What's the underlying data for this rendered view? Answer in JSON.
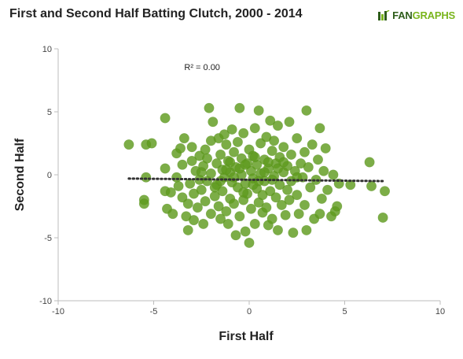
{
  "header": {
    "title": "First and Second Half Batting Clutch, 2000 - 2014",
    "brand_left": "FAN",
    "brand_right": "GRAPHS"
  },
  "colors": {
    "point": "#5f9b1e",
    "point_stroke": "#4f8a16",
    "trend": "#333333",
    "axis": "#bdbdbd",
    "grid": "#e8e8e8",
    "brand_dark": "#2e5c1a",
    "brand_light": "#7ab51d"
  },
  "chart_data": {
    "type": "scatter",
    "title": "First and Second Half Batting Clutch, 2000 - 2014",
    "xlabel": "First Half",
    "ylabel": "Second Half",
    "xlim": [
      -10,
      10
    ],
    "ylim": [
      -10,
      10
    ],
    "x_ticks": [
      -10,
      -5,
      0,
      5,
      10
    ],
    "y_ticks": [
      -10,
      -5,
      0,
      5,
      10
    ],
    "annotation": "R² = 0.00",
    "grid": false,
    "legend": "none",
    "trendline": {
      "style": "dotted",
      "x": [
        -6.3,
        7.0
      ],
      "y": [
        -0.3,
        -0.5
      ]
    },
    "points": [
      [
        -6.3,
        2.4
      ],
      [
        -5.4,
        2.4
      ],
      [
        -5.1,
        2.5
      ],
      [
        -5.4,
        -0.2
      ],
      [
        -5.5,
        -2.0
      ],
      [
        -5.5,
        -2.3
      ],
      [
        -4.4,
        4.5
      ],
      [
        -4.4,
        0.5
      ],
      [
        -4.4,
        -1.3
      ],
      [
        -4.3,
        -2.7
      ],
      [
        -4.0,
        -3.1
      ],
      [
        -4.1,
        -1.4
      ],
      [
        -3.8,
        1.7
      ],
      [
        -3.8,
        -0.2
      ],
      [
        -3.7,
        -0.9
      ],
      [
        -3.6,
        2.1
      ],
      [
        -3.5,
        0.8
      ],
      [
        -3.5,
        -1.8
      ],
      [
        -3.4,
        2.9
      ],
      [
        -3.3,
        -3.3
      ],
      [
        -3.2,
        -4.4
      ],
      [
        -3.2,
        -2.3
      ],
      [
        -3.1,
        -0.7
      ],
      [
        -3.0,
        2.2
      ],
      [
        -3.0,
        1.1
      ],
      [
        -2.9,
        -1.5
      ],
      [
        -2.9,
        -3.6
      ],
      [
        -2.8,
        0.3
      ],
      [
        -2.7,
        -2.6
      ],
      [
        -2.6,
        1.5
      ],
      [
        -2.6,
        -0.4
      ],
      [
        -2.5,
        -1.2
      ],
      [
        -2.4,
        -3.9
      ],
      [
        -2.4,
        0.7
      ],
      [
        -2.3,
        2.0
      ],
      [
        -2.3,
        -2.1
      ],
      [
        -2.2,
        1.3
      ],
      [
        -2.2,
        -0.5
      ],
      [
        -2.1,
        5.3
      ],
      [
        -2.0,
        -3.1
      ],
      [
        -2.0,
        0.1
      ],
      [
        -2.0,
        2.7
      ],
      [
        -1.9,
        4.2
      ],
      [
        -1.8,
        -1.7
      ],
      [
        -1.7,
        0.9
      ],
      [
        -1.7,
        -0.8
      ],
      [
        -1.6,
        2.9
      ],
      [
        -1.6,
        -2.5
      ],
      [
        -1.5,
        -3.5
      ],
      [
        -1.5,
        1.6
      ],
      [
        -1.4,
        0.4
      ],
      [
        -1.4,
        -1.3
      ],
      [
        -1.3,
        3.2
      ],
      [
        -1.3,
        -0.2
      ],
      [
        -1.2,
        -2.9
      ],
      [
        -1.2,
        2.4
      ],
      [
        -1.1,
        1.1
      ],
      [
        -1.1,
        -3.9
      ],
      [
        -1.0,
        0.2
      ],
      [
        -1.0,
        -1.9
      ],
      [
        -0.9,
        3.6
      ],
      [
        -0.9,
        -0.6
      ],
      [
        -0.8,
        1.8
      ],
      [
        -0.8,
        -2.3
      ],
      [
        -0.7,
        0.6
      ],
      [
        -0.7,
        -4.8
      ],
      [
        -0.6,
        2.6
      ],
      [
        -0.6,
        -1.0
      ],
      [
        -0.5,
        5.3
      ],
      [
        -0.5,
        -3.3
      ],
      [
        -0.4,
        1.3
      ],
      [
        -0.4,
        0.0
      ],
      [
        -0.3,
        -2.0
      ],
      [
        -0.3,
        3.3
      ],
      [
        -0.2,
        -0.7
      ],
      [
        -0.2,
        -4.5
      ],
      [
        -0.1,
        0.9
      ],
      [
        -0.1,
        -1.5
      ],
      [
        0.0,
        -5.4
      ],
      [
        0.0,
        2.0
      ],
      [
        0.1,
        0.3
      ],
      [
        0.1,
        -2.7
      ],
      [
        0.2,
        1.5
      ],
      [
        0.2,
        -0.3
      ],
      [
        0.3,
        -3.9
      ],
      [
        0.3,
        3.7
      ],
      [
        0.4,
        -1.1
      ],
      [
        0.4,
        0.8
      ],
      [
        0.5,
        5.1
      ],
      [
        0.5,
        -2.2
      ],
      [
        0.6,
        2.5
      ],
      [
        0.6,
        0.1
      ],
      [
        0.7,
        -3.0
      ],
      [
        0.7,
        -1.6
      ],
      [
        0.8,
        1.2
      ],
      [
        0.8,
        -0.5
      ],
      [
        0.9,
        3.0
      ],
      [
        0.9,
        -2.6
      ],
      [
        1.0,
        -4.0
      ],
      [
        1.0,
        0.5
      ],
      [
        1.1,
        4.3
      ],
      [
        1.1,
        -1.3
      ],
      [
        1.2,
        1.9
      ],
      [
        1.2,
        -3.5
      ],
      [
        1.3,
        -0.1
      ],
      [
        1.3,
        2.7
      ],
      [
        1.4,
        -1.8
      ],
      [
        1.4,
        0.9
      ],
      [
        1.5,
        3.9
      ],
      [
        1.5,
        -4.4
      ],
      [
        1.6,
        -0.8
      ],
      [
        1.6,
        1.4
      ],
      [
        1.7,
        -2.4
      ],
      [
        1.8,
        0.2
      ],
      [
        1.8,
        2.2
      ],
      [
        1.9,
        -3.2
      ],
      [
        2.0,
        -1.2
      ],
      [
        2.0,
        0.7
      ],
      [
        2.1,
        4.2
      ],
      [
        2.1,
        -2.0
      ],
      [
        2.2,
        1.6
      ],
      [
        2.2,
        -0.5
      ],
      [
        2.3,
        -4.6
      ],
      [
        2.4,
        0.3
      ],
      [
        2.5,
        2.9
      ],
      [
        2.5,
        -1.6
      ],
      [
        2.6,
        -3.1
      ],
      [
        2.7,
        0.9
      ],
      [
        2.8,
        -0.2
      ],
      [
        2.9,
        1.8
      ],
      [
        2.9,
        -2.4
      ],
      [
        3.0,
        5.1
      ],
      [
        3.0,
        -4.4
      ],
      [
        3.1,
        0.6
      ],
      [
        3.2,
        -1.0
      ],
      [
        3.3,
        2.4
      ],
      [
        3.4,
        -3.5
      ],
      [
        3.5,
        -0.4
      ],
      [
        3.6,
        1.2
      ],
      [
        3.7,
        3.7
      ],
      [
        3.7,
        -3.1
      ],
      [
        3.8,
        -1.9
      ],
      [
        3.9,
        0.3
      ],
      [
        4.0,
        2.1
      ],
      [
        4.1,
        -1.2
      ],
      [
        4.3,
        -3.3
      ],
      [
        4.4,
        0.0
      ],
      [
        4.5,
        -2.9
      ],
      [
        4.6,
        -2.5
      ],
      [
        4.7,
        -0.7
      ],
      [
        5.3,
        -0.8
      ],
      [
        6.3,
        1.0
      ],
      [
        6.4,
        -0.9
      ],
      [
        7.0,
        -3.4
      ],
      [
        7.1,
        -1.3
      ],
      [
        -0.5,
        0.5
      ],
      [
        0.5,
        -0.5
      ],
      [
        -1.0,
        1.0
      ],
      [
        1.0,
        1.0
      ],
      [
        -1.5,
        -0.5
      ],
      [
        1.5,
        0.5
      ],
      [
        -0.2,
        0.8
      ],
      [
        0.2,
        -0.8
      ],
      [
        -0.8,
        -0.2
      ],
      [
        0.8,
        0.2
      ],
      [
        -2.5,
        0.2
      ],
      [
        2.5,
        -0.2
      ],
      [
        -1.8,
        -1.0
      ],
      [
        1.8,
        1.0
      ],
      [
        -0.3,
        -1.4
      ],
      [
        0.3,
        1.4
      ],
      [
        -1.2,
        0.4
      ],
      [
        1.2,
        -0.4
      ]
    ]
  }
}
